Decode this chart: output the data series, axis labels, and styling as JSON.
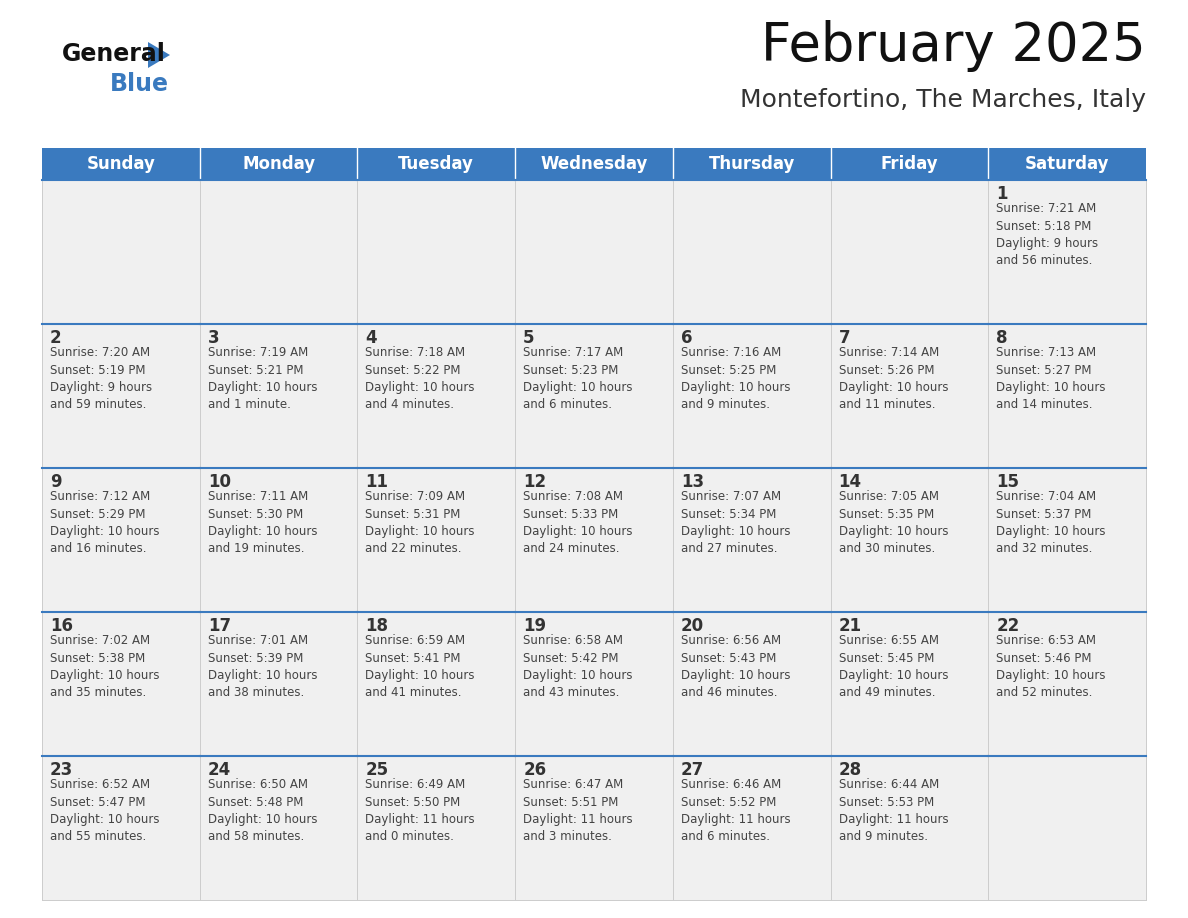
{
  "title": "February 2025",
  "subtitle": "Montefortino, The Marches, Italy",
  "header_color": "#3a7abf",
  "header_text_color": "#ffffff",
  "cell_bg_color": "#f0f0f0",
  "border_color": "#3a7abf",
  "grid_color": "#cccccc",
  "day_number_color": "#333333",
  "info_text_color": "#444444",
  "days_of_week": [
    "Sunday",
    "Monday",
    "Tuesday",
    "Wednesday",
    "Thursday",
    "Friday",
    "Saturday"
  ],
  "logo_general_color": "#111111",
  "logo_blue_color": "#3a7abf",
  "logo_triangle_color": "#3a7abf",
  "weeks": [
    [
      {
        "day": null,
        "info": null
      },
      {
        "day": null,
        "info": null
      },
      {
        "day": null,
        "info": null
      },
      {
        "day": null,
        "info": null
      },
      {
        "day": null,
        "info": null
      },
      {
        "day": null,
        "info": null
      },
      {
        "day": 1,
        "info": "Sunrise: 7:21 AM\nSunset: 5:18 PM\nDaylight: 9 hours\nand 56 minutes."
      }
    ],
    [
      {
        "day": 2,
        "info": "Sunrise: 7:20 AM\nSunset: 5:19 PM\nDaylight: 9 hours\nand 59 minutes."
      },
      {
        "day": 3,
        "info": "Sunrise: 7:19 AM\nSunset: 5:21 PM\nDaylight: 10 hours\nand 1 minute."
      },
      {
        "day": 4,
        "info": "Sunrise: 7:18 AM\nSunset: 5:22 PM\nDaylight: 10 hours\nand 4 minutes."
      },
      {
        "day": 5,
        "info": "Sunrise: 7:17 AM\nSunset: 5:23 PM\nDaylight: 10 hours\nand 6 minutes."
      },
      {
        "day": 6,
        "info": "Sunrise: 7:16 AM\nSunset: 5:25 PM\nDaylight: 10 hours\nand 9 minutes."
      },
      {
        "day": 7,
        "info": "Sunrise: 7:14 AM\nSunset: 5:26 PM\nDaylight: 10 hours\nand 11 minutes."
      },
      {
        "day": 8,
        "info": "Sunrise: 7:13 AM\nSunset: 5:27 PM\nDaylight: 10 hours\nand 14 minutes."
      }
    ],
    [
      {
        "day": 9,
        "info": "Sunrise: 7:12 AM\nSunset: 5:29 PM\nDaylight: 10 hours\nand 16 minutes."
      },
      {
        "day": 10,
        "info": "Sunrise: 7:11 AM\nSunset: 5:30 PM\nDaylight: 10 hours\nand 19 minutes."
      },
      {
        "day": 11,
        "info": "Sunrise: 7:09 AM\nSunset: 5:31 PM\nDaylight: 10 hours\nand 22 minutes."
      },
      {
        "day": 12,
        "info": "Sunrise: 7:08 AM\nSunset: 5:33 PM\nDaylight: 10 hours\nand 24 minutes."
      },
      {
        "day": 13,
        "info": "Sunrise: 7:07 AM\nSunset: 5:34 PM\nDaylight: 10 hours\nand 27 minutes."
      },
      {
        "day": 14,
        "info": "Sunrise: 7:05 AM\nSunset: 5:35 PM\nDaylight: 10 hours\nand 30 minutes."
      },
      {
        "day": 15,
        "info": "Sunrise: 7:04 AM\nSunset: 5:37 PM\nDaylight: 10 hours\nand 32 minutes."
      }
    ],
    [
      {
        "day": 16,
        "info": "Sunrise: 7:02 AM\nSunset: 5:38 PM\nDaylight: 10 hours\nand 35 minutes."
      },
      {
        "day": 17,
        "info": "Sunrise: 7:01 AM\nSunset: 5:39 PM\nDaylight: 10 hours\nand 38 minutes."
      },
      {
        "day": 18,
        "info": "Sunrise: 6:59 AM\nSunset: 5:41 PM\nDaylight: 10 hours\nand 41 minutes."
      },
      {
        "day": 19,
        "info": "Sunrise: 6:58 AM\nSunset: 5:42 PM\nDaylight: 10 hours\nand 43 minutes."
      },
      {
        "day": 20,
        "info": "Sunrise: 6:56 AM\nSunset: 5:43 PM\nDaylight: 10 hours\nand 46 minutes."
      },
      {
        "day": 21,
        "info": "Sunrise: 6:55 AM\nSunset: 5:45 PM\nDaylight: 10 hours\nand 49 minutes."
      },
      {
        "day": 22,
        "info": "Sunrise: 6:53 AM\nSunset: 5:46 PM\nDaylight: 10 hours\nand 52 minutes."
      }
    ],
    [
      {
        "day": 23,
        "info": "Sunrise: 6:52 AM\nSunset: 5:47 PM\nDaylight: 10 hours\nand 55 minutes."
      },
      {
        "day": 24,
        "info": "Sunrise: 6:50 AM\nSunset: 5:48 PM\nDaylight: 10 hours\nand 58 minutes."
      },
      {
        "day": 25,
        "info": "Sunrise: 6:49 AM\nSunset: 5:50 PM\nDaylight: 11 hours\nand 0 minutes."
      },
      {
        "day": 26,
        "info": "Sunrise: 6:47 AM\nSunset: 5:51 PM\nDaylight: 11 hours\nand 3 minutes."
      },
      {
        "day": 27,
        "info": "Sunrise: 6:46 AM\nSunset: 5:52 PM\nDaylight: 11 hours\nand 6 minutes."
      },
      {
        "day": 28,
        "info": "Sunrise: 6:44 AM\nSunset: 5:53 PM\nDaylight: 11 hours\nand 9 minutes."
      },
      {
        "day": null,
        "info": null
      }
    ]
  ]
}
